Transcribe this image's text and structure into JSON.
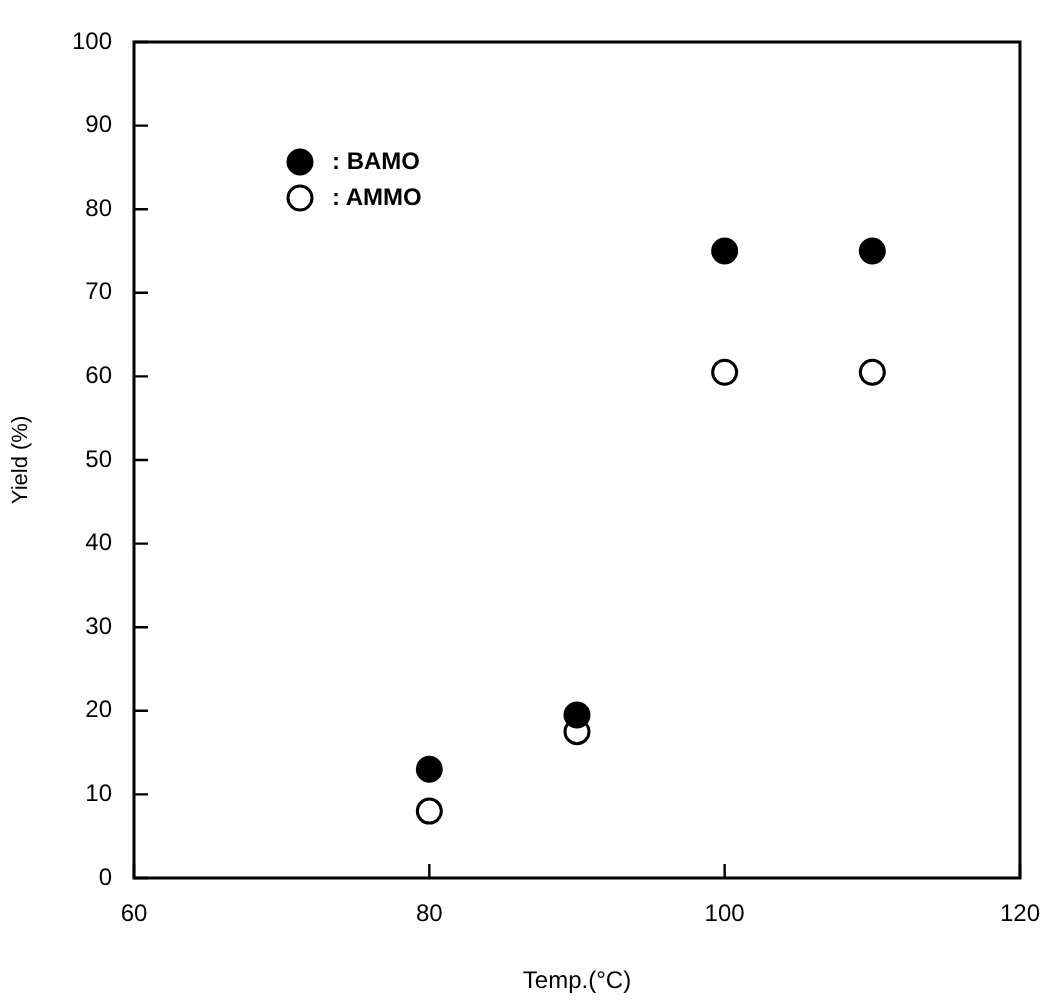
{
  "chart_data": {
    "type": "scatter",
    "xlabel": "Temp.(°C)",
    "ylabel": "Yield (%)",
    "x": [
      80,
      90,
      100,
      110
    ],
    "series": [
      {
        "name": ": BAMO",
        "color": "#000000",
        "values": [
          13,
          19.5,
          75,
          75
        ]
      },
      {
        "name": ": AMMO",
        "color": "#ffffff",
        "values": [
          8,
          17.5,
          60.5,
          60.5
        ]
      }
    ],
    "xlim": [
      60,
      120
    ],
    "xticks": [
      60,
      80,
      100,
      120
    ],
    "ylim": [
      0,
      100
    ],
    "yticks": [
      0,
      10,
      20,
      30,
      40,
      50,
      60,
      70,
      80,
      90,
      100
    ],
    "grid": false,
    "legend": "top left",
    "marker": "circle"
  }
}
